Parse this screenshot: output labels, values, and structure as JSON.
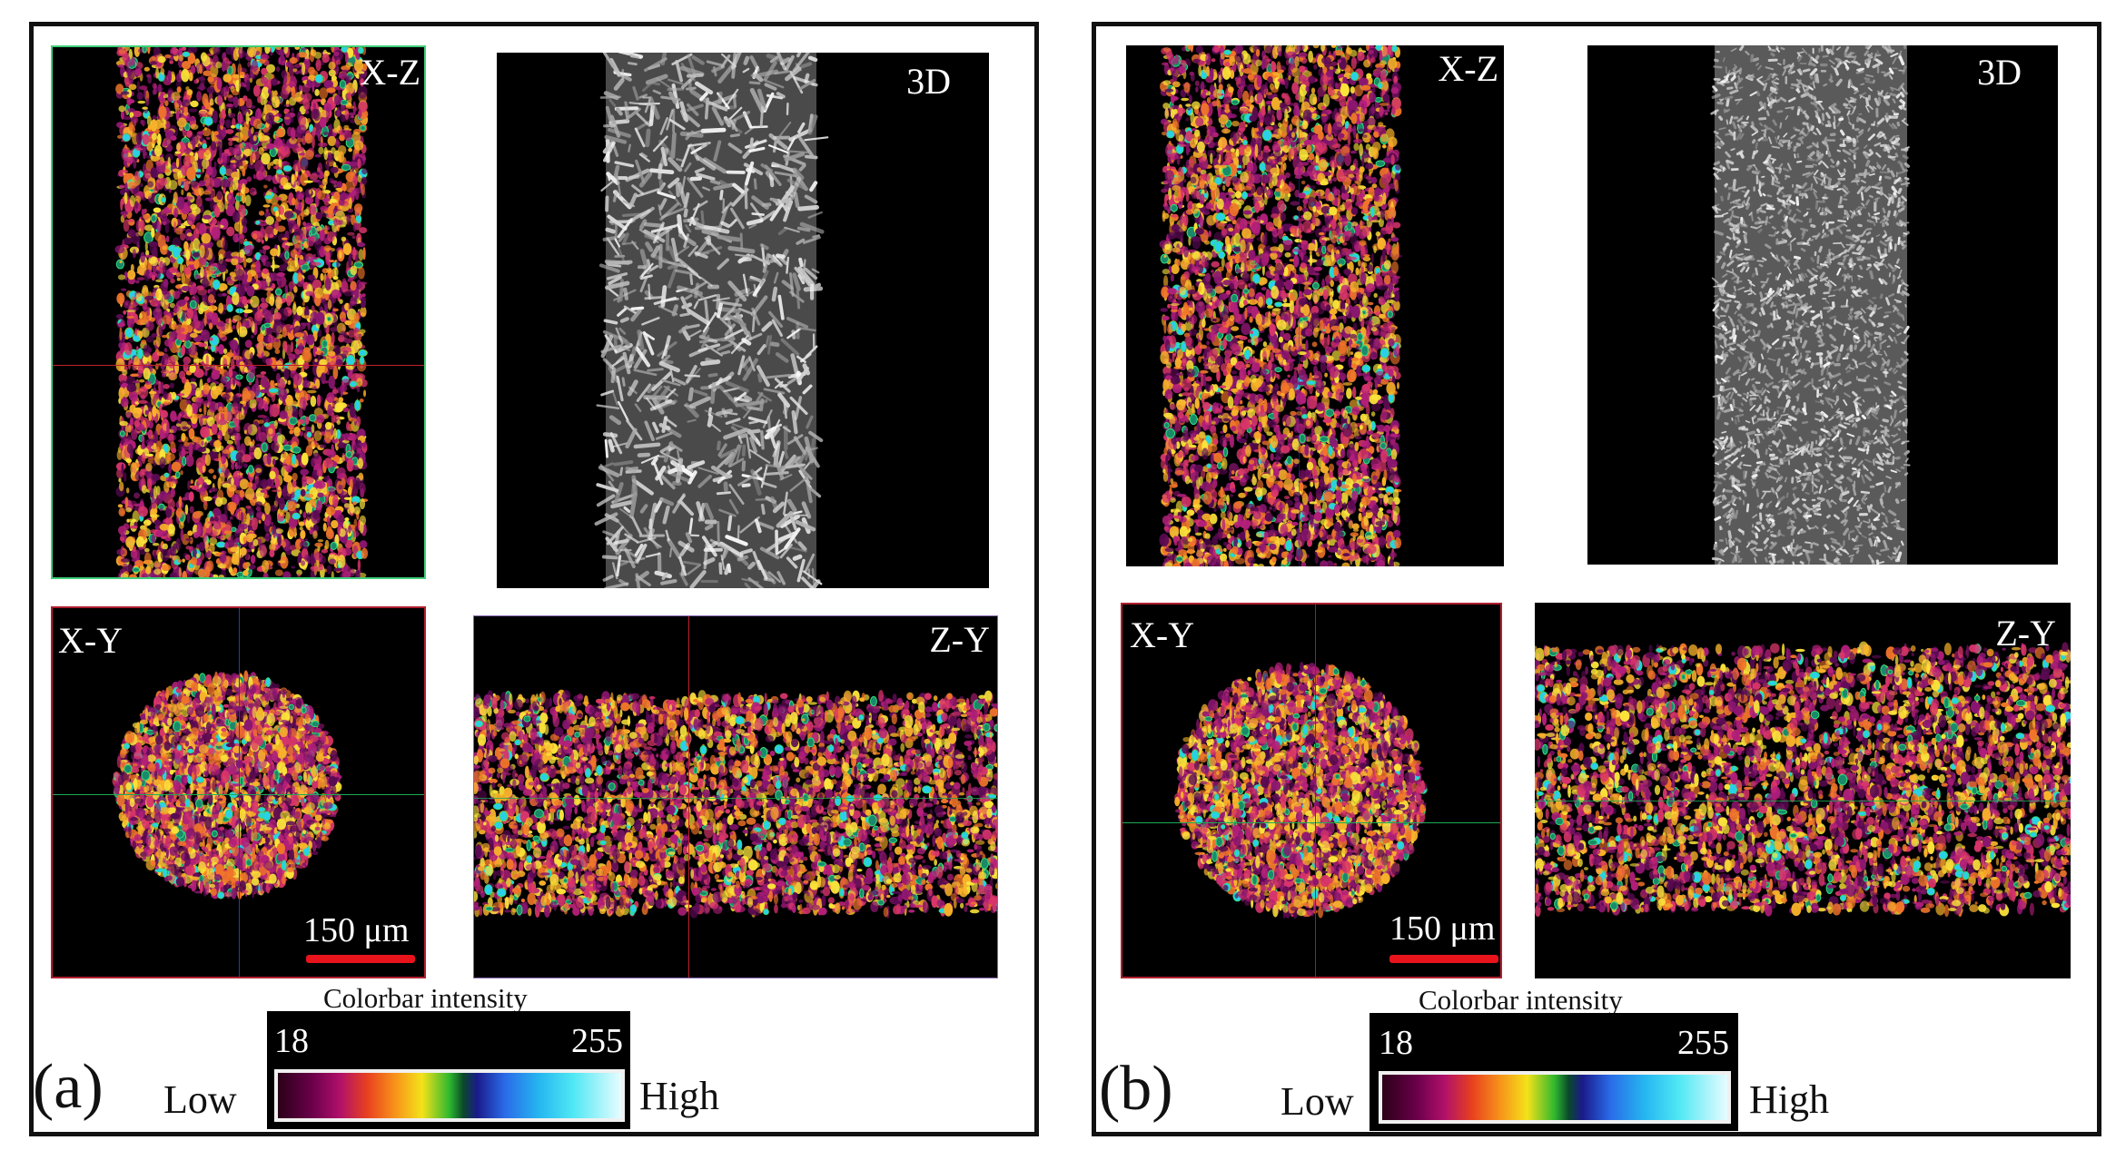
{
  "panels": [
    {
      "tag": "(a)",
      "labels": {
        "xz": "X-Z",
        "three_d": "3D",
        "xy": "X-Y",
        "zy": "Z-Y"
      },
      "scale_bar": "150 μm",
      "colorbar": {
        "title": "Colorbar intensity",
        "min": "18",
        "max": "255",
        "low": "Low",
        "high": "High"
      }
    },
    {
      "tag": "(b)",
      "labels": {
        "xz": "X-Z",
        "three_d": "3D",
        "xy": "X-Y",
        "zy": "Z-Y"
      },
      "scale_bar": "150 μm",
      "colorbar": {
        "title": "Colorbar intensity",
        "min": "18",
        "max": "255",
        "low": "Low",
        "high": "High"
      }
    }
  ],
  "colors": {
    "crosshair_red": "#c0202a",
    "crosshair_green": "#1faa55",
    "crosshair_blue": "#2a3ab0",
    "scale_bar": "#e8131b"
  }
}
